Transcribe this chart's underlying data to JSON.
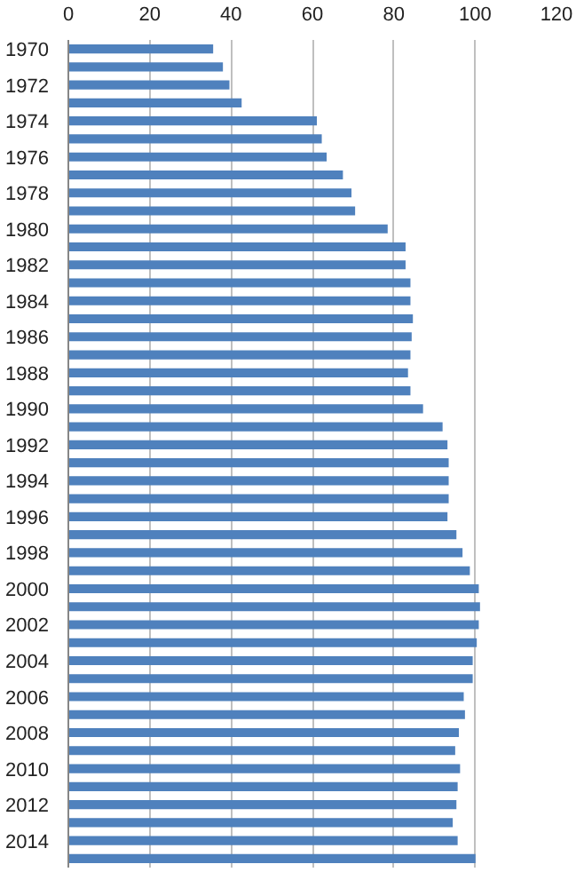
{
  "chart_data": {
    "type": "bar",
    "orientation": "horizontal",
    "categories": [
      "1970",
      null,
      "1972",
      null,
      "1974",
      null,
      "1976",
      null,
      "1978",
      null,
      "1980",
      null,
      "1982",
      null,
      "1984",
      null,
      "1986",
      null,
      "1988",
      null,
      "1990",
      null,
      "1992",
      null,
      "1994",
      null,
      "1996",
      null,
      "1998",
      null,
      "2000",
      null,
      "2002",
      null,
      "2004",
      null,
      "2006",
      null,
      "2008",
      null,
      "2010",
      null,
      "2012",
      null,
      "2014",
      null
    ],
    "values": [
      35.6,
      38.0,
      39.6,
      42.6,
      61.1,
      62.3,
      63.5,
      67.5,
      69.6,
      70.5,
      78.5,
      82.9,
      82.9,
      84.1,
      84.1,
      84.7,
      84.4,
      84.1,
      83.5,
      84.1,
      87.2,
      92.0,
      93.2,
      93.5,
      93.5,
      93.5,
      93.2,
      95.4,
      96.9,
      98.7,
      100.9,
      101.2,
      100.9,
      100.4,
      99.4,
      99.4,
      97.2,
      97.5,
      96.0,
      95.1,
      96.3,
      95.7,
      95.4,
      94.5,
      95.7,
      100.1
    ],
    "color": "#4f81bd",
    "xlim": [
      0,
      120
    ],
    "xticks": [
      0,
      20,
      40,
      60,
      80,
      100,
      120
    ],
    "grid": "x"
  }
}
